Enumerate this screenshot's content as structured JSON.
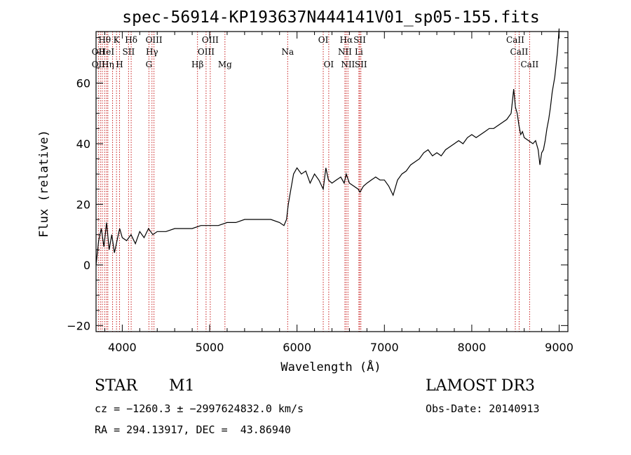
{
  "chart_data": {
    "type": "line",
    "title": "spec-56914-KP193637N444141V01_sp05-155.fits",
    "xlabel": "Wavelength (Å)",
    "ylabel": "Flux (relative)",
    "xlim": [
      3700,
      9100
    ],
    "ylim": [
      -22,
      77
    ],
    "x_ticks": [
      4000,
      5000,
      6000,
      7000,
      8000,
      9000
    ],
    "y_ticks": [
      -20,
      0,
      20,
      40,
      60
    ],
    "x_tick_labels": [
      "4000",
      "5000",
      "6000",
      "7000",
      "8000",
      "9000"
    ],
    "y_tick_labels": [
      "−20",
      "0",
      "20",
      "40",
      "60"
    ],
    "line_color": "#000000",
    "marker_color": "#c81e1e",
    "series": [
      {
        "name": "flux",
        "x": [
          3700,
          3730,
          3760,
          3790,
          3820,
          3850,
          3880,
          3910,
          3940,
          3970,
          4000,
          4050,
          4100,
          4150,
          4200,
          4250,
          4300,
          4350,
          4400,
          4500,
          4600,
          4700,
          4800,
          4900,
          5000,
          5100,
          5200,
          5300,
          5400,
          5500,
          5600,
          5700,
          5800,
          5850,
          5880,
          5900,
          5930,
          5960,
          6000,
          6050,
          6100,
          6150,
          6200,
          6250,
          6300,
          6330,
          6360,
          6400,
          6450,
          6500,
          6540,
          6563,
          6600,
          6650,
          6700,
          6720,
          6760,
          6800,
          6850,
          6900,
          6950,
          7000,
          7050,
          7100,
          7150,
          7200,
          7250,
          7300,
          7350,
          7400,
          7450,
          7500,
          7550,
          7600,
          7650,
          7700,
          7750,
          7800,
          7850,
          7900,
          7950,
          8000,
          8050,
          8100,
          8150,
          8200,
          8250,
          8300,
          8350,
          8400,
          8450,
          8480,
          8500,
          8520,
          8540,
          8560,
          8580,
          8600,
          8650,
          8700,
          8730,
          8760,
          8780,
          8800,
          8820,
          8840,
          8860,
          8880,
          8900,
          8920,
          8950,
          8980,
          9000
        ],
        "y": [
          0,
          8,
          12,
          6,
          14,
          5,
          10,
          4,
          8,
          12,
          9,
          8,
          10,
          7,
          11,
          9,
          12,
          10,
          11,
          11,
          12,
          12,
          12,
          13,
          13,
          13,
          14,
          14,
          15,
          15,
          15,
          15,
          14,
          13,
          15,
          20,
          25,
          30,
          32,
          30,
          31,
          27,
          30,
          28,
          25,
          32,
          28,
          27,
          28,
          29,
          27,
          30,
          27,
          26,
          25,
          24,
          26,
          27,
          28,
          29,
          28,
          28,
          26,
          23,
          28,
          30,
          31,
          33,
          34,
          35,
          37,
          38,
          36,
          37,
          36,
          38,
          39,
          40,
          41,
          40,
          42,
          43,
          42,
          43,
          44,
          45,
          45,
          46,
          47,
          48,
          50,
          58,
          52,
          50,
          46,
          43,
          44,
          42,
          41,
          40,
          41,
          38,
          33,
          37,
          38,
          41,
          45,
          48,
          52,
          57,
          62,
          70,
          78
        ]
      }
    ],
    "line_labels": [
      {
        "wave": 3798,
        "text": "Hθ",
        "row": 0
      },
      {
        "wave": 3727,
        "text": "OII",
        "row": 1
      },
      {
        "wave": 3727,
        "text": "OII",
        "row": 2
      },
      {
        "wave": 3820,
        "text": "HeI",
        "row": 1
      },
      {
        "wave": 3835,
        "text": "Hη",
        "row": 2
      },
      {
        "wave": 3934,
        "text": "K",
        "row": 0
      },
      {
        "wave": 3969,
        "text": "H",
        "row": 2
      },
      {
        "wave": 4072,
        "text": "SII",
        "row": 1
      },
      {
        "wave": 4102,
        "text": "Hδ",
        "row": 0
      },
      {
        "wave": 4363,
        "text": "OIII",
        "row": 0
      },
      {
        "wave": 4340,
        "text": "Hγ",
        "row": 1
      },
      {
        "wave": 4305,
        "text": "G",
        "row": 2
      },
      {
        "wave": 4861,
        "text": "Hβ",
        "row": 2
      },
      {
        "wave": 4959,
        "text": "OIII",
        "row": 1
      },
      {
        "wave": 5007,
        "text": "OIII",
        "row": 0
      },
      {
        "wave": 5175,
        "text": "Mg",
        "row": 2
      },
      {
        "wave": 5893,
        "text": "Na",
        "row": 1
      },
      {
        "wave": 6300,
        "text": "OI",
        "row": 0
      },
      {
        "wave": 6363,
        "text": "OI",
        "row": 2
      },
      {
        "wave": 6563,
        "text": "Hα",
        "row": 0
      },
      {
        "wave": 6548,
        "text": "NII",
        "row": 1
      },
      {
        "wave": 6583,
        "text": "NII",
        "row": 2
      },
      {
        "wave": 6717,
        "text": "SII",
        "row": 0
      },
      {
        "wave": 6708,
        "text": "Li",
        "row": 1
      },
      {
        "wave": 6731,
        "text": "SII",
        "row": 2
      },
      {
        "wave": 8498,
        "text": "CaII",
        "row": 0
      },
      {
        "wave": 8542,
        "text": "CaII",
        "row": 1
      },
      {
        "wave": 8662,
        "text": "CaII",
        "row": 2
      }
    ],
    "marker_waves": [
      3727,
      3750,
      3771,
      3798,
      3820,
      3835,
      3889,
      3934,
      3969,
      4072,
      4102,
      4305,
      4340,
      4363,
      4861,
      4959,
      5007,
      5175,
      5893,
      6300,
      6363,
      6548,
      6563,
      6583,
      6708,
      6717,
      6731,
      8498,
      8542,
      8662
    ]
  },
  "info": {
    "object_class": "STAR",
    "subclass": "M1",
    "survey": "LAMOST DR3",
    "redshift_line": "cz = −1260.3 ± −2997624832.0 km/s",
    "obs_date": "Obs-Date: 20140913",
    "coords": "RA = 294.13917, DEC =  43.86940"
  }
}
